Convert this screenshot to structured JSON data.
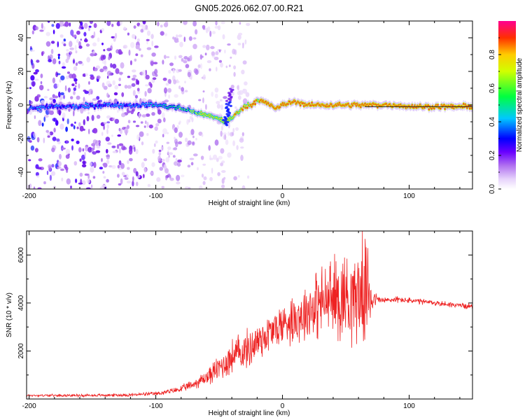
{
  "title": "GN05.2026.062.07.00.R21",
  "chart_data": [
    {
      "type": "heatmap",
      "panel": "top",
      "title": "GN05.2026.062.07.00.R21",
      "xlabel": "Height of straight line (km)",
      "ylabel": "Frequency (Hz)",
      "xlim": [
        -202,
        150
      ],
      "ylim": [
        -50,
        50
      ],
      "xticks": [
        -200,
        -100,
        0,
        100
      ],
      "xtick_labels": [
        "-200",
        "-100",
        "0",
        "100"
      ],
      "yticks": [
        -40,
        -20,
        0,
        20,
        40
      ],
      "ytick_labels": [
        "-40",
        "-20",
        "0",
        "20",
        "40"
      ],
      "colorbar": {
        "label": "Normalized spectral amplitude",
        "range": [
          0,
          1
        ],
        "ticks": [
          0.0,
          0.2,
          0.4,
          0.6,
          0.8
        ],
        "tick_labels": [
          "0.0",
          "0.2",
          "0.4",
          "0.6",
          "0.8"
        ],
        "colormap": [
          "#ffffff",
          "#d8b8f8",
          "#8a2be2",
          "#0000ff",
          "#00e5ff",
          "#00ff00",
          "#ffff00",
          "#ff8800",
          "#ff0000",
          "#ff0088"
        ]
      },
      "ridge": {
        "description": "dominant frequency ridge vs height",
        "x": [
          -200,
          -180,
          -160,
          -140,
          -120,
          -100,
          -80,
          -70,
          -60,
          -50,
          -45,
          -40,
          -35,
          -30,
          -25,
          -20,
          -15,
          -10,
          -5,
          0,
          5,
          10,
          20,
          30,
          40,
          50,
          60,
          70,
          80,
          90,
          100,
          110,
          120,
          130,
          140,
          150
        ],
        "y": [
          -2,
          -1,
          -1,
          0,
          0,
          0,
          -2,
          -4,
          -6,
          -8,
          -10,
          -8,
          -4,
          -1,
          0,
          3,
          2,
          0,
          -2,
          0,
          1,
          2,
          0,
          0,
          0,
          0,
          0,
          0,
          0,
          0,
          -1,
          -1,
          -1,
          -1,
          -1,
          -1
        ]
      }
    },
    {
      "type": "line",
      "panel": "bottom",
      "xlabel": "Height of straight line (km)",
      "ylabel": "SNR (10 * v/v)",
      "xlim": [
        -202,
        150
      ],
      "ylim": [
        0,
        7000
      ],
      "xticks": [
        -200,
        -100,
        0,
        100
      ],
      "xtick_labels": [
        "-200",
        "-100",
        "0",
        "100"
      ],
      "yticks": [
        2000,
        4000,
        6000
      ],
      "ytick_labels": [
        "2000",
        "4000",
        "6000"
      ],
      "series": [
        {
          "name": "SNR",
          "color": "#ee2222",
          "envelope_x": [
            -202,
            -180,
            -150,
            -120,
            -100,
            -90,
            -80,
            -70,
            -60,
            -50,
            -45,
            -40,
            -35,
            -30,
            -25,
            -20,
            -15,
            -10,
            -5,
            0,
            5,
            10,
            15,
            20,
            25,
            30,
            35,
            40,
            45,
            50,
            55,
            60,
            65,
            70,
            72,
            75,
            80,
            90,
            100,
            110,
            120,
            130,
            140,
            150
          ],
          "mean_values": [
            150,
            150,
            150,
            170,
            220,
            300,
            420,
            620,
            900,
            1300,
            1500,
            1750,
            1900,
            2000,
            2150,
            2400,
            2600,
            2750,
            2950,
            3100,
            3300,
            3400,
            3500,
            3700,
            3900,
            4000,
            4100,
            4200,
            4250,
            4300,
            4300,
            4400,
            4500,
            4400,
            4200,
            4150,
            4100,
            4150,
            4100,
            4050,
            4000,
            3950,
            3900,
            3850
          ],
          "noise_amplitude": [
            60,
            60,
            70,
            80,
            100,
            130,
            170,
            250,
            400,
            650,
            800,
            900,
            950,
            950,
            1000,
            1100,
            1050,
            1000,
            1050,
            1100,
            1200,
            1300,
            1400,
            1500,
            1700,
            1800,
            1900,
            2100,
            2300,
            2400,
            2300,
            2400,
            2500,
            2000,
            500,
            200,
            180,
            160,
            150,
            150,
            140,
            140,
            140,
            140
          ],
          "peak": {
            "x": 63,
            "y": 7000
          }
        }
      ]
    }
  ]
}
